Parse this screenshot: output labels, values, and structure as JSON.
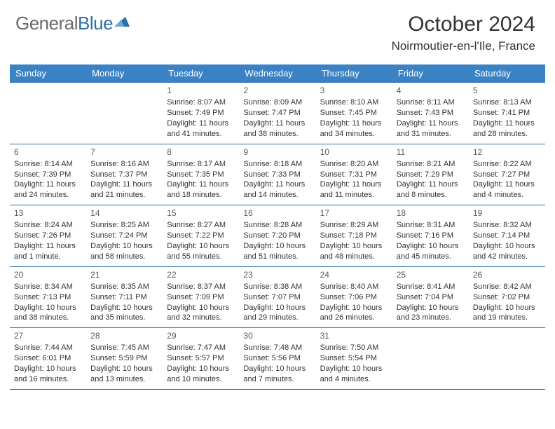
{
  "brand": {
    "part1": "General",
    "part2": "Blue"
  },
  "title": "October 2024",
  "location": "Noirmoutier-en-l'Ile, France",
  "colors": {
    "header_bg": "#3a82c4",
    "border": "#2f6fa8",
    "text": "#333333",
    "logo_gray": "#6a6a6a",
    "logo_blue": "#2f6fa8"
  },
  "dayHeaders": [
    "Sunday",
    "Monday",
    "Tuesday",
    "Wednesday",
    "Thursday",
    "Friday",
    "Saturday"
  ],
  "weeks": [
    [
      null,
      null,
      {
        "n": "1",
        "sr": "8:07 AM",
        "ss": "7:49 PM",
        "dl": "11 hours and 41 minutes."
      },
      {
        "n": "2",
        "sr": "8:09 AM",
        "ss": "7:47 PM",
        "dl": "11 hours and 38 minutes."
      },
      {
        "n": "3",
        "sr": "8:10 AM",
        "ss": "7:45 PM",
        "dl": "11 hours and 34 minutes."
      },
      {
        "n": "4",
        "sr": "8:11 AM",
        "ss": "7:43 PM",
        "dl": "11 hours and 31 minutes."
      },
      {
        "n": "5",
        "sr": "8:13 AM",
        "ss": "7:41 PM",
        "dl": "11 hours and 28 minutes."
      }
    ],
    [
      {
        "n": "6",
        "sr": "8:14 AM",
        "ss": "7:39 PM",
        "dl": "11 hours and 24 minutes."
      },
      {
        "n": "7",
        "sr": "8:16 AM",
        "ss": "7:37 PM",
        "dl": "11 hours and 21 minutes."
      },
      {
        "n": "8",
        "sr": "8:17 AM",
        "ss": "7:35 PM",
        "dl": "11 hours and 18 minutes."
      },
      {
        "n": "9",
        "sr": "8:18 AM",
        "ss": "7:33 PM",
        "dl": "11 hours and 14 minutes."
      },
      {
        "n": "10",
        "sr": "8:20 AM",
        "ss": "7:31 PM",
        "dl": "11 hours and 11 minutes."
      },
      {
        "n": "11",
        "sr": "8:21 AM",
        "ss": "7:29 PM",
        "dl": "11 hours and 8 minutes."
      },
      {
        "n": "12",
        "sr": "8:22 AM",
        "ss": "7:27 PM",
        "dl": "11 hours and 4 minutes."
      }
    ],
    [
      {
        "n": "13",
        "sr": "8:24 AM",
        "ss": "7:26 PM",
        "dl": "11 hours and 1 minute."
      },
      {
        "n": "14",
        "sr": "8:25 AM",
        "ss": "7:24 PM",
        "dl": "10 hours and 58 minutes."
      },
      {
        "n": "15",
        "sr": "8:27 AM",
        "ss": "7:22 PM",
        "dl": "10 hours and 55 minutes."
      },
      {
        "n": "16",
        "sr": "8:28 AM",
        "ss": "7:20 PM",
        "dl": "10 hours and 51 minutes."
      },
      {
        "n": "17",
        "sr": "8:29 AM",
        "ss": "7:18 PM",
        "dl": "10 hours and 48 minutes."
      },
      {
        "n": "18",
        "sr": "8:31 AM",
        "ss": "7:16 PM",
        "dl": "10 hours and 45 minutes."
      },
      {
        "n": "19",
        "sr": "8:32 AM",
        "ss": "7:14 PM",
        "dl": "10 hours and 42 minutes."
      }
    ],
    [
      {
        "n": "20",
        "sr": "8:34 AM",
        "ss": "7:13 PM",
        "dl": "10 hours and 38 minutes."
      },
      {
        "n": "21",
        "sr": "8:35 AM",
        "ss": "7:11 PM",
        "dl": "10 hours and 35 minutes."
      },
      {
        "n": "22",
        "sr": "8:37 AM",
        "ss": "7:09 PM",
        "dl": "10 hours and 32 minutes."
      },
      {
        "n": "23",
        "sr": "8:38 AM",
        "ss": "7:07 PM",
        "dl": "10 hours and 29 minutes."
      },
      {
        "n": "24",
        "sr": "8:40 AM",
        "ss": "7:06 PM",
        "dl": "10 hours and 26 minutes."
      },
      {
        "n": "25",
        "sr": "8:41 AM",
        "ss": "7:04 PM",
        "dl": "10 hours and 23 minutes."
      },
      {
        "n": "26",
        "sr": "8:42 AM",
        "ss": "7:02 PM",
        "dl": "10 hours and 19 minutes."
      }
    ],
    [
      {
        "n": "27",
        "sr": "7:44 AM",
        "ss": "6:01 PM",
        "dl": "10 hours and 16 minutes."
      },
      {
        "n": "28",
        "sr": "7:45 AM",
        "ss": "5:59 PM",
        "dl": "10 hours and 13 minutes."
      },
      {
        "n": "29",
        "sr": "7:47 AM",
        "ss": "5:57 PM",
        "dl": "10 hours and 10 minutes."
      },
      {
        "n": "30",
        "sr": "7:48 AM",
        "ss": "5:56 PM",
        "dl": "10 hours and 7 minutes."
      },
      {
        "n": "31",
        "sr": "7:50 AM",
        "ss": "5:54 PM",
        "dl": "10 hours and 4 minutes."
      },
      null,
      null
    ]
  ],
  "labels": {
    "sunrise": "Sunrise:",
    "sunset": "Sunset:",
    "daylight": "Daylight:"
  }
}
